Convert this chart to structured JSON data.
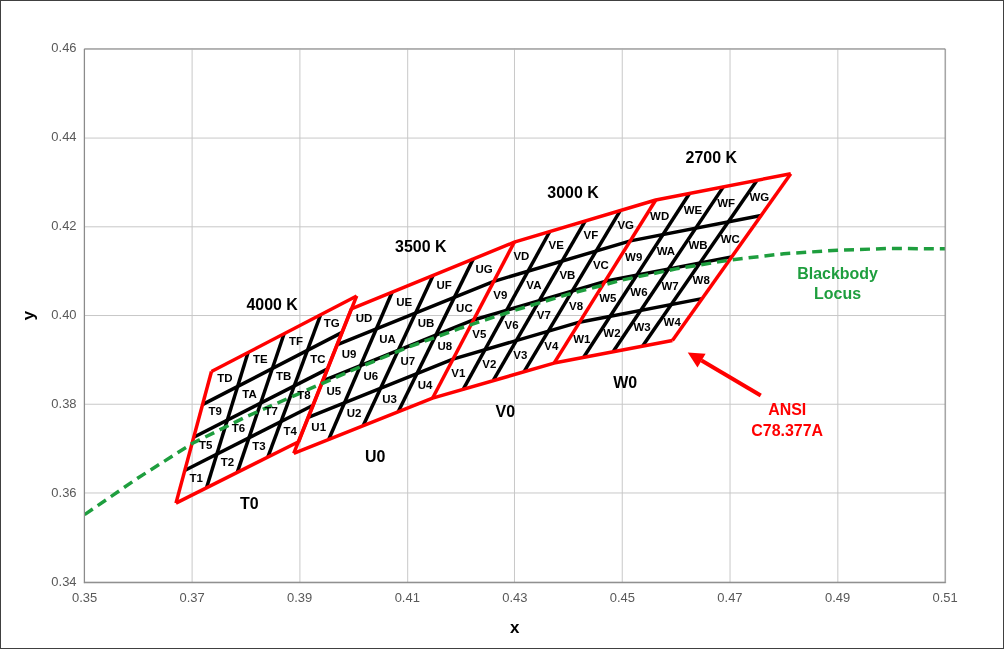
{
  "chart_data": {
    "type": "line",
    "xlabel": "x",
    "ylabel": "y",
    "xlim": [
      0.35,
      0.51
    ],
    "xticks": [
      0.35,
      0.37,
      0.39,
      0.41,
      0.43,
      0.45,
      0.47,
      0.49,
      0.51
    ],
    "ylim": [
      0.34,
      0.46
    ],
    "yticks": [
      0.34,
      0.36,
      0.38,
      {
        "value": 0.4,
        "label": "0.40"
      },
      0.42,
      0.44,
      0.46
    ],
    "grid": true,
    "legend": false,
    "marker": "none",
    "series": [
      {
        "color": "#000000",
        "x": [
          0.3687,
          0.3925
        ],
        "values": [
          0.3652,
          0.3798
        ]
      },
      {
        "color": "#000000",
        "x": [
          0.3703,
          0.3952
        ],
        "values": [
          0.3726,
          0.388
        ]
      },
      {
        "color": "#000000",
        "x": [
          0.372,
          0.3979
        ],
        "values": [
          0.38,
          0.3962
        ]
      },
      {
        "color": "#000000",
        "x": [
          0.3727,
          0.3804
        ],
        "values": [
          0.3613,
          0.3917
        ]
      },
      {
        "color": "#000000",
        "x": [
          0.3784,
          0.3871
        ],
        "values": [
          0.3647,
          0.3959
        ]
      },
      {
        "color": "#000000",
        "x": [
          0.3841,
          0.3939
        ],
        "values": [
          0.3682,
          0.4002
        ]
      },
      {
        "color": "#000000",
        "x": [
          0.3916,
          0.4185,
          0.442,
          0.4648
        ],
        "values": [
          0.3771,
          0.3902,
          0.3985,
          0.4038
        ]
      },
      {
        "color": "#000000",
        "x": [
          0.3943,
          0.4223,
          0.4468,
          0.4703
        ],
        "values": [
          0.3853,
          0.399,
          0.4077,
          0.4132
        ]
      },
      {
        "color": "#000000",
        "x": [
          0.3969,
          0.4261,
          0.4515,
          0.4758
        ],
        "values": [
          0.3934,
          0.4077,
          0.4168,
          0.4225
        ]
      },
      {
        "color": "#000000",
        "x": [
          0.3954,
          0.4072
        ],
        "values": [
          0.3721,
          0.4053
        ]
      },
      {
        "color": "#000000",
        "x": [
          0.4018,
          0.4148
        ],
        "values": [
          0.3752,
          0.409
        ]
      },
      {
        "color": "#000000",
        "x": [
          0.4083,
          0.4223
        ],
        "values": [
          0.3783,
          0.4128
        ]
      },
      {
        "color": "#000000",
        "x": [
          0.4204,
          0.4365
        ],
        "values": [
          0.3834,
          0.4189
        ]
      },
      {
        "color": "#000000",
        "x": [
          0.426,
          0.4431
        ],
        "values": [
          0.3854,
          0.4213
        ]
      },
      {
        "color": "#000000",
        "x": [
          0.4317,
          0.4496
        ],
        "values": [
          0.3873,
          0.4236
        ]
      },
      {
        "color": "#000000",
        "x": [
          0.4428,
          0.4625
        ],
        "values": [
          0.3906,
          0.4275
        ]
      },
      {
        "color": "#000000",
        "x": [
          0.4483,
          0.4688
        ],
        "values": [
          0.3919,
          0.429
        ]
      },
      {
        "color": "#000000",
        "x": [
          0.4538,
          0.475
        ],
        "values": [
          0.3932,
          0.4304
        ]
      },
      {
        "color": "#ff0000",
        "x": [
          0.367,
          0.3736
        ],
        "values": [
          0.3578,
          0.3874
        ]
      },
      {
        "color": "#ff0000",
        "x": [
          0.3898,
          0.4006
        ],
        "values": [
          0.3716,
          0.4044
        ]
      },
      {
        "color": "#ff0000",
        "x": [
          0.3889,
          0.3996
        ],
        "values": [
          0.369,
          0.4015
        ]
      },
      {
        "color": "#ff0000",
        "x": [
          0.4147,
          0.4299
        ],
        "values": [
          0.3814,
          0.4165
        ]
      },
      {
        "color": "#ff0000",
        "x": [
          0.4373,
          0.4562
        ],
        "values": [
          0.3893,
          0.426
        ]
      },
      {
        "name": "ANSI C78.377A",
        "color": "#ff0000",
        "x": [
          0.4593,
          0.4813
        ],
        "values": [
          0.3944,
          0.4319
        ]
      },
      {
        "color": "#ff0000",
        "x": [
          0.3736,
          0.4006
        ],
        "values": [
          0.3874,
          0.4044
        ]
      },
      {
        "color": "#ff0000",
        "x": [
          0.367,
          0.3898
        ],
        "values": [
          0.3578,
          0.3716
        ]
      },
      {
        "color": "#ff0000",
        "x": [
          0.3996,
          0.4299,
          0.4562,
          0.4813
        ],
        "values": [
          0.4015,
          0.4165,
          0.426,
          0.4319
        ]
      },
      {
        "color": "#ff0000",
        "x": [
          0.3889,
          0.4147,
          0.4373,
          0.4593
        ],
        "values": [
          0.369,
          0.3814,
          0.3893,
          0.3944
        ]
      },
      {
        "name": "Blackbody Locus",
        "color": "#1e9e3e",
        "line_style": "dashed",
        "x": [
          0.35,
          0.36,
          0.37,
          0.38,
          0.39,
          0.4,
          0.41,
          0.42,
          0.43,
          0.44,
          0.45,
          0.46,
          0.47,
          0.48,
          0.49,
          0.5,
          0.51
        ],
        "values": [
          0.3552,
          0.3635,
          0.3712,
          0.3772,
          0.3825,
          0.3878,
          0.3928,
          0.3972,
          0.4012,
          0.4048,
          0.408,
          0.4105,
          0.4125,
          0.4139,
          0.4147,
          0.4151,
          0.415
        ]
      }
    ],
    "annotations": [
      "4000 K",
      "3500 K",
      "3000 K",
      "2700 K",
      "T0",
      "U0",
      "V0",
      "W0",
      "T1",
      "T2",
      "T3",
      "T4",
      "T5",
      "T6",
      "T7",
      "T8",
      "T9",
      "TA",
      "TB",
      "TC",
      "TD",
      "TE",
      "TF",
      "TG",
      "U1",
      "U2",
      "U3",
      "U4",
      "U5",
      "U6",
      "U7",
      "U8",
      "U9",
      "UA",
      "UB",
      "UC",
      "UD",
      "UE",
      "UF",
      "UG",
      "V1",
      "V2",
      "V3",
      "V4",
      "V5",
      "V6",
      "V7",
      "V8",
      "V9",
      "VA",
      "VB",
      "VC",
      "VD",
      "VE",
      "VF",
      "VG",
      "W1",
      "W2",
      "W3",
      "W4",
      "W5",
      "W6",
      "W7",
      "W8",
      "W9",
      "WA",
      "WB",
      "WC",
      "WD",
      "WE",
      "WF",
      "WG"
    ]
  }
}
